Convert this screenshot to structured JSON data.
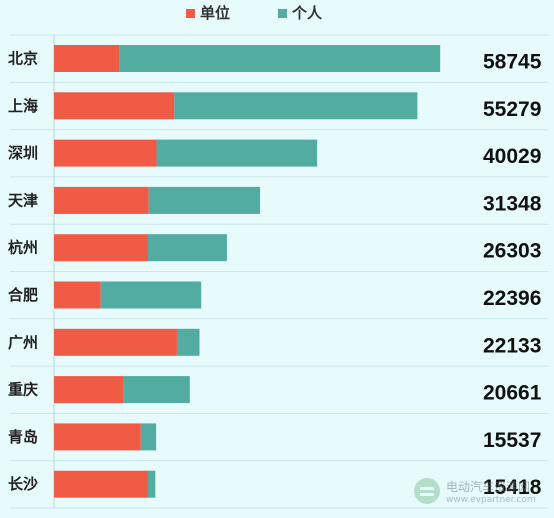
{
  "legend": [
    {
      "label": "单位",
      "color": "#f05b45"
    },
    {
      "label": "个人",
      "color": "#53aca2"
    }
  ],
  "chart_data": {
    "type": "bar",
    "orientation": "horizontal",
    "stacked": true,
    "categories": [
      "北京",
      "上海",
      "深圳",
      "天津",
      "杭州",
      "合肥",
      "广州",
      "重庆",
      "青岛",
      "长沙"
    ],
    "series": [
      {
        "name": "单位",
        "color": "#f05b45",
        "values": [
          10000,
          18300,
          15600,
          14400,
          14300,
          7100,
          18700,
          10600,
          13200,
          14300
        ]
      },
      {
        "name": "个人",
        "color": "#53aca2",
        "values": [
          48745,
          36979,
          24429,
          16948,
          12003,
          15296,
          3433,
          10061,
          2337,
          1118
        ]
      }
    ],
    "totals": [
      "58745",
      "55279",
      "40029",
      "31348",
      "26303",
      "22396",
      "22133",
      "20661",
      "15537",
      "15418"
    ],
    "xlim": [
      0,
      64500
    ],
    "grid": true,
    "legend_position": "top"
  },
  "watermark": {
    "name": "电动汽车资源网",
    "url": "www.evpartner.com"
  }
}
